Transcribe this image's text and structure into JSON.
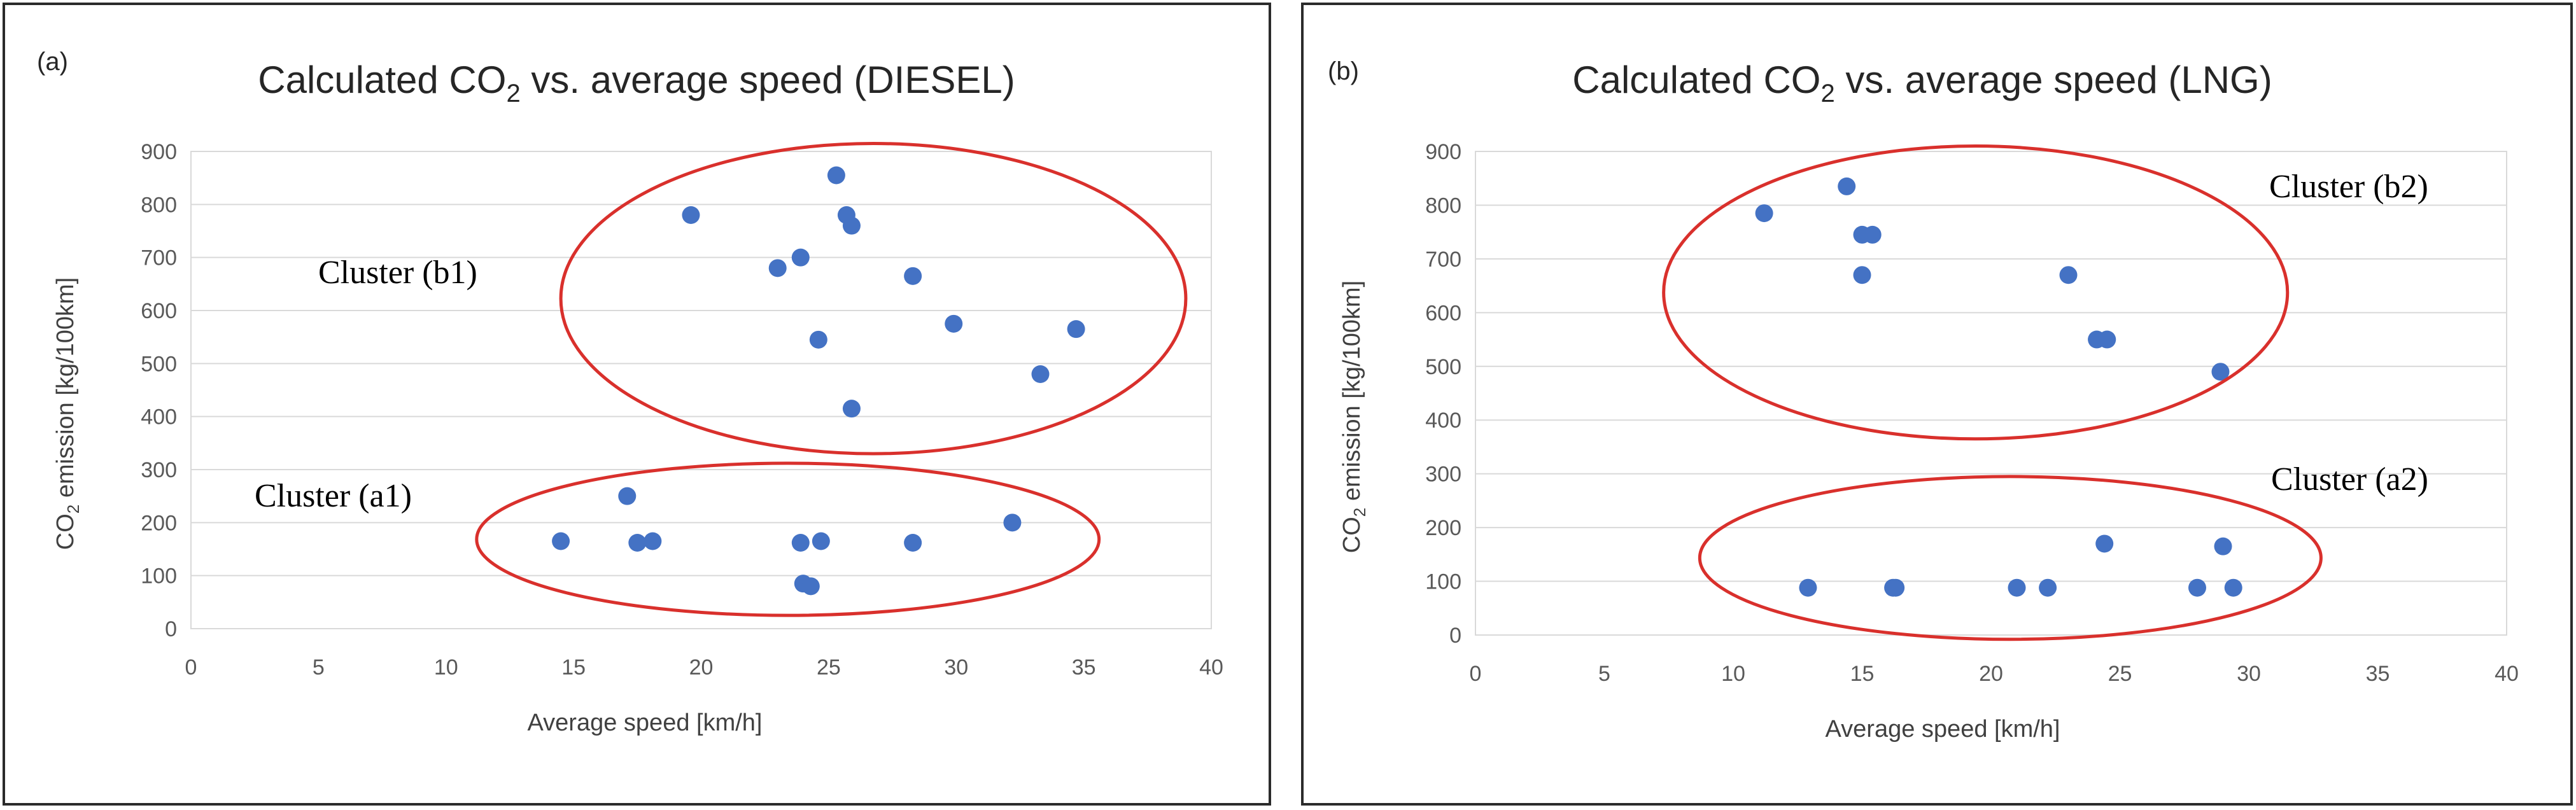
{
  "chart_data": [
    {
      "type": "scatter",
      "panel_label": "(a)",
      "title": "Calculated CO",
      "title_subscript": "2",
      "title_suffix": " vs. average speed (DIESEL)",
      "xlabel": "Average speed [km/h]",
      "ylabel": "CO",
      "ylabel_subscript": "2",
      "ylabel_suffix": " emission [kg/100km]",
      "xlim": [
        0,
        40
      ],
      "ylim": [
        0,
        900
      ],
      "xticks": [
        0,
        5,
        10,
        15,
        20,
        25,
        30,
        35,
        40
      ],
      "yticks": [
        0,
        100,
        200,
        300,
        400,
        500,
        600,
        700,
        800,
        900
      ],
      "grid": "horizontal",
      "marker_color": "#4472c4",
      "cluster_color": "#d9302c",
      "series": [
        {
          "name": "DIESEL",
          "x": [
            25.3,
            19.6,
            25.7,
            25.9,
            23.9,
            23.0,
            28.3,
            29.9,
            34.7,
            24.6,
            33.3,
            25.9,
            17.1,
            14.5,
            17.5,
            18.1,
            23.9,
            24.7,
            28.3,
            32.2,
            24.0,
            24.3
          ],
          "y": [
            855,
            780,
            780,
            760,
            700,
            680,
            665,
            575,
            565,
            545,
            480,
            415,
            250,
            165,
            162,
            165,
            162,
            165,
            162,
            200,
            85,
            80
          ]
        }
      ],
      "clusters": [
        {
          "label": "Cluster (b1)",
          "x_range": [
            14.5,
            39.0
          ],
          "y_range": [
            330,
            915
          ]
        },
        {
          "label": "Cluster (a1)",
          "x_range": [
            11.2,
            35.6
          ],
          "y_range": [
            25,
            312
          ]
        }
      ]
    },
    {
      "type": "scatter",
      "panel_label": "(b)",
      "title": "Calculated CO",
      "title_subscript": "2",
      "title_suffix": " vs. average speed (LNG)",
      "xlabel": "Average speed [km/h]",
      "ylabel": "CO",
      "ylabel_subscript": "2",
      "ylabel_suffix": " emission [kg/100km]",
      "xlim": [
        0,
        40
      ],
      "ylim": [
        0,
        900
      ],
      "xticks": [
        0,
        5,
        10,
        15,
        20,
        25,
        30,
        35,
        40
      ],
      "yticks": [
        0,
        100,
        200,
        300,
        400,
        500,
        600,
        700,
        800,
        900
      ],
      "grid": "horizontal",
      "marker_color": "#4472c4",
      "cluster_color": "#d9302c",
      "series": [
        {
          "name": "LNG",
          "x": [
            14.4,
            11.2,
            15.0,
            15.4,
            15.0,
            23.0,
            24.1,
            24.5,
            28.9,
            24.4,
            29.0,
            12.9,
            16.2,
            16.3,
            21.0,
            22.2,
            28.0,
            29.4
          ],
          "y": [
            835,
            785,
            745,
            745,
            670,
            670,
            550,
            550,
            490,
            170,
            165,
            88,
            88,
            88,
            88,
            88,
            88,
            88
          ]
        }
      ],
      "clusters": [
        {
          "label": "Cluster (b2)",
          "x_range": [
            7.3,
            31.5
          ],
          "y_range": [
            365,
            910
          ]
        },
        {
          "label": "Cluster (a2)",
          "x_range": [
            8.7,
            32.8
          ],
          "y_range": [
            -8,
            295
          ]
        }
      ]
    }
  ]
}
